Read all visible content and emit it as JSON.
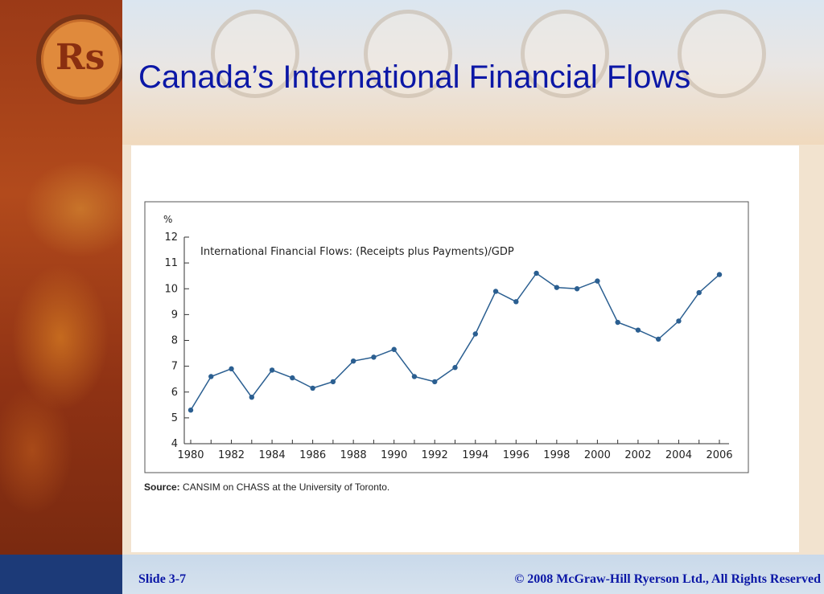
{
  "slide": {
    "title": "Canada’s International Financial Flows",
    "slide_number": "Slide 3-7",
    "copyright": "© 2008 McGraw-Hill Ryerson Ltd., All Rights Reserved",
    "coin_label": "Rs"
  },
  "source": {
    "label": "Source:",
    "text": "CANSIM on CHASS at the University of Toronto."
  },
  "colors": {
    "title": "#0b17a6",
    "series": "#2b5f91",
    "axis": "#333333"
  },
  "chart_data": {
    "type": "line",
    "title": "International Financial Flows: (Receipts plus Payments)/GDP",
    "ylabel": "%",
    "xlabel": "",
    "ylim": [
      4,
      12
    ],
    "yticks": [
      4,
      5,
      6,
      7,
      8,
      9,
      10,
      11,
      12
    ],
    "xlim": [
      1980,
      2006
    ],
    "xticks": [
      1980,
      1982,
      1984,
      1986,
      1988,
      1990,
      1992,
      1994,
      1996,
      1998,
      2000,
      2002,
      2004,
      2006
    ],
    "grid": false,
    "x": [
      1980,
      1981,
      1982,
      1983,
      1984,
      1985,
      1986,
      1987,
      1988,
      1989,
      1990,
      1991,
      1992,
      1993,
      1994,
      1995,
      1996,
      1997,
      1998,
      1999,
      2000,
      2001,
      2002,
      2003,
      2004,
      2005,
      2006
    ],
    "series": [
      {
        "values": [
          5.3,
          6.6,
          6.9,
          5.8,
          6.85,
          6.55,
          6.15,
          6.4,
          7.2,
          7.35,
          7.65,
          6.6,
          6.4,
          6.95,
          8.25,
          9.9,
          9.5,
          10.6,
          10.05,
          10.0,
          10.3,
          8.7,
          8.4,
          8.05,
          8.75,
          9.85,
          10.55
        ]
      }
    ]
  }
}
